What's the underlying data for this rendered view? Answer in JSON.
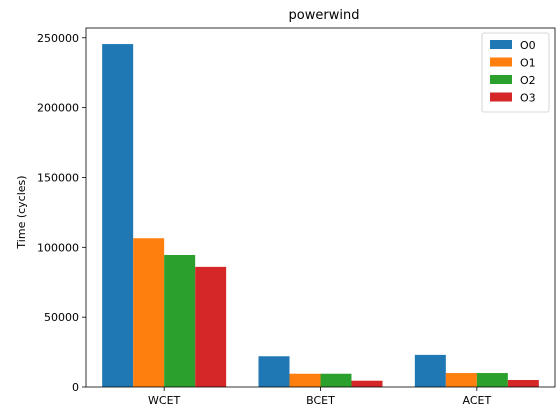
{
  "chart_data": {
    "type": "bar",
    "title": "powerwind",
    "xlabel": "",
    "ylabel": "Time (cycles)",
    "categories": [
      "WCET",
      "BCET",
      "ACET"
    ],
    "series": [
      {
        "name": "O0",
        "color": "#1f77b4",
        "values": [
          245500,
          22000,
          23000
        ]
      },
      {
        "name": "O1",
        "color": "#ff7f0e",
        "values": [
          106500,
          9500,
          10000
        ]
      },
      {
        "name": "O2",
        "color": "#2ca02c",
        "values": [
          94500,
          9500,
          10000
        ]
      },
      {
        "name": "O3",
        "color": "#d62728",
        "values": [
          86000,
          4500,
          5000
        ]
      }
    ],
    "ylim": [
      0,
      257000
    ],
    "yticks": [
      0,
      50000,
      100000,
      150000,
      200000,
      250000
    ],
    "ytick_labels": [
      "0",
      "50000",
      "100000",
      "150000",
      "200000",
      "250000"
    ],
    "grid": false,
    "legend_position": "top-right"
  }
}
